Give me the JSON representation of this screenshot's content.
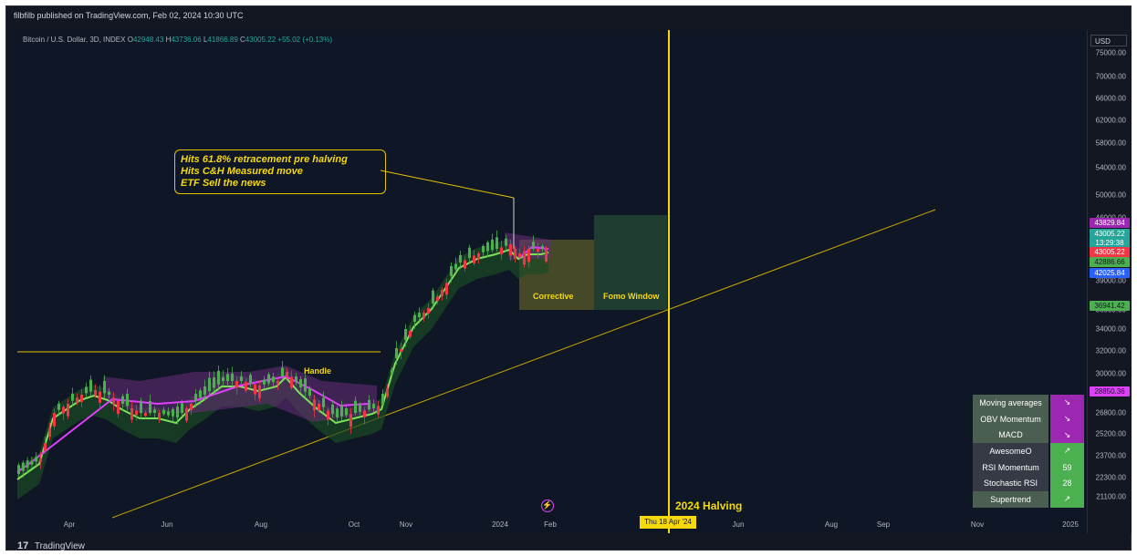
{
  "header": {
    "text": "filbfilb published on TradingView.com, Feb 02, 2024 10:30 UTC"
  },
  "legend": {
    "symbol": "Bitcoin / U.S. Dollar, 3D, INDEX",
    "o_label": "O",
    "o": "42948.43",
    "h_label": "H",
    "h": "43736.06",
    "l_label": "L",
    "l": "41866.89",
    "c_label": "C",
    "c": "43005.22",
    "change": "+55.02 (+0.13%)"
  },
  "currency": "USD",
  "price_axis": {
    "ticks": [
      "75000.00",
      "70000.00",
      "66000.00",
      "62000.00",
      "58000.00",
      "54000.00",
      "50000.00",
      "46000.00",
      "39000.00",
      "36000.00",
      "34000.00",
      "32000.00",
      "30000.00",
      "26800.00",
      "25200.00",
      "23700.00",
      "22300.00",
      "21100.00"
    ],
    "labels": [
      {
        "text": "43829.84",
        "bg": "#9c27b0",
        "fg": "#ffffff"
      },
      {
        "text": "43005.22",
        "bg": "#26a69a",
        "fg": "#ffffff"
      },
      {
        "text": "13:29:38",
        "bg": "#26a69a",
        "fg": "#ffffff"
      },
      {
        "text": "43005.22",
        "bg": "#f23645",
        "fg": "#ffffff"
      },
      {
        "text": "42886.66",
        "bg": "#4caf50",
        "fg": "#131722"
      },
      {
        "text": "42025.84",
        "bg": "#2962ff",
        "fg": "#ffffff"
      },
      {
        "text": "36941.42",
        "bg": "#4caf50",
        "fg": "#131722"
      },
      {
        "text": "28850.36",
        "bg": "#e040fb",
        "fg": "#131722"
      }
    ]
  },
  "time_axis": {
    "ticks": [
      "Apr",
      "Jun",
      "Aug",
      "Oct",
      "Nov",
      "2024",
      "Feb",
      "Jun",
      "Aug",
      "Sep",
      "Nov",
      "2025"
    ],
    "halving_date": "Thu 18 Apr '24"
  },
  "annotations": {
    "callout": [
      "Hits 61.8% retracement pre halving",
      "Hits C&H Measured move",
      "ETF Sell the news"
    ],
    "handle": "Handle",
    "corrective": "Corrective",
    "fomo": "Fomo Window",
    "halving": "2024 Halving"
  },
  "dashboard": [
    {
      "name": "Moving averages",
      "value": "↘",
      "name_bg": "#4b5e52",
      "value_bg": "#9c27b0"
    },
    {
      "name": "OBV Momentum",
      "value": "↘",
      "name_bg": "#4b5e52",
      "value_bg": "#9c27b0"
    },
    {
      "name": "MACD",
      "value": "↘",
      "name_bg": "#4b5e52",
      "value_bg": "#9c27b0"
    },
    {
      "name": "AwesomeO",
      "value": "↗",
      "name_bg": "#363a45",
      "value_bg": "#4caf50"
    },
    {
      "name": "RSI Momentum",
      "value": "59",
      "name_bg": "#363a45",
      "value_bg": "#4caf50"
    },
    {
      "name": "Stochastic RSI",
      "value": "28",
      "name_bg": "#363a45",
      "value_bg": "#4caf50"
    },
    {
      "name": "Supertrend",
      "value": "↗",
      "name_bg": "#4b5e52",
      "value_bg": "#4caf50"
    }
  ],
  "footer": {
    "logo": "17",
    "brand": "TradingView"
  },
  "colors": {
    "up": "#4caf50",
    "down": "#f23645",
    "accent": "#f5d90a",
    "ma": "#e040fb"
  },
  "chart_data": {
    "type": "candlestick",
    "title": "Bitcoin / U.S. Dollar, 3D, INDEX",
    "y_scale": "log",
    "ylim": [
      20000,
      76000
    ],
    "x_ticks": [
      "Apr",
      "Jun",
      "Aug",
      "Oct",
      "Nov",
      "2024",
      "Feb",
      "Jun",
      "Aug",
      "Sep",
      "Nov",
      "2025"
    ],
    "series": [
      {
        "name": "price",
        "approx_closes": [
          22000,
          27500,
          28500,
          29000,
          27000,
          26500,
          30200,
          30000,
          29500,
          29600,
          26800,
          26000,
          26200,
          27000,
          30800,
          34500,
          36500,
          37500,
          42000,
          43500,
          41800,
          43000,
          47500,
          42500,
          40500,
          43005
        ]
      }
    ],
    "annotations": [
      "Handle",
      "Corrective",
      "Fomo Window",
      "2024 Halving"
    ]
  }
}
